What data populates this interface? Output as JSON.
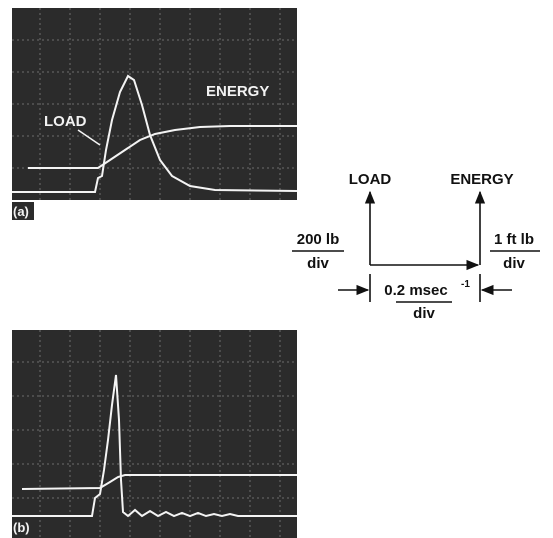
{
  "panel_a": {
    "label": "(a)",
    "load_label": "LOAD",
    "energy_label": "ENERGY"
  },
  "panel_b": {
    "label": "(b)"
  },
  "scale": {
    "load": "LOAD",
    "energy": "ENERGY",
    "load_unit": {
      "top": "200 lb",
      "bottom": "div"
    },
    "energy_unit": {
      "top": "1 ft lb",
      "bottom": "div"
    },
    "time_unit": {
      "top": "0.2 msec",
      "superscript": "-1",
      "bottom": "div"
    }
  }
}
